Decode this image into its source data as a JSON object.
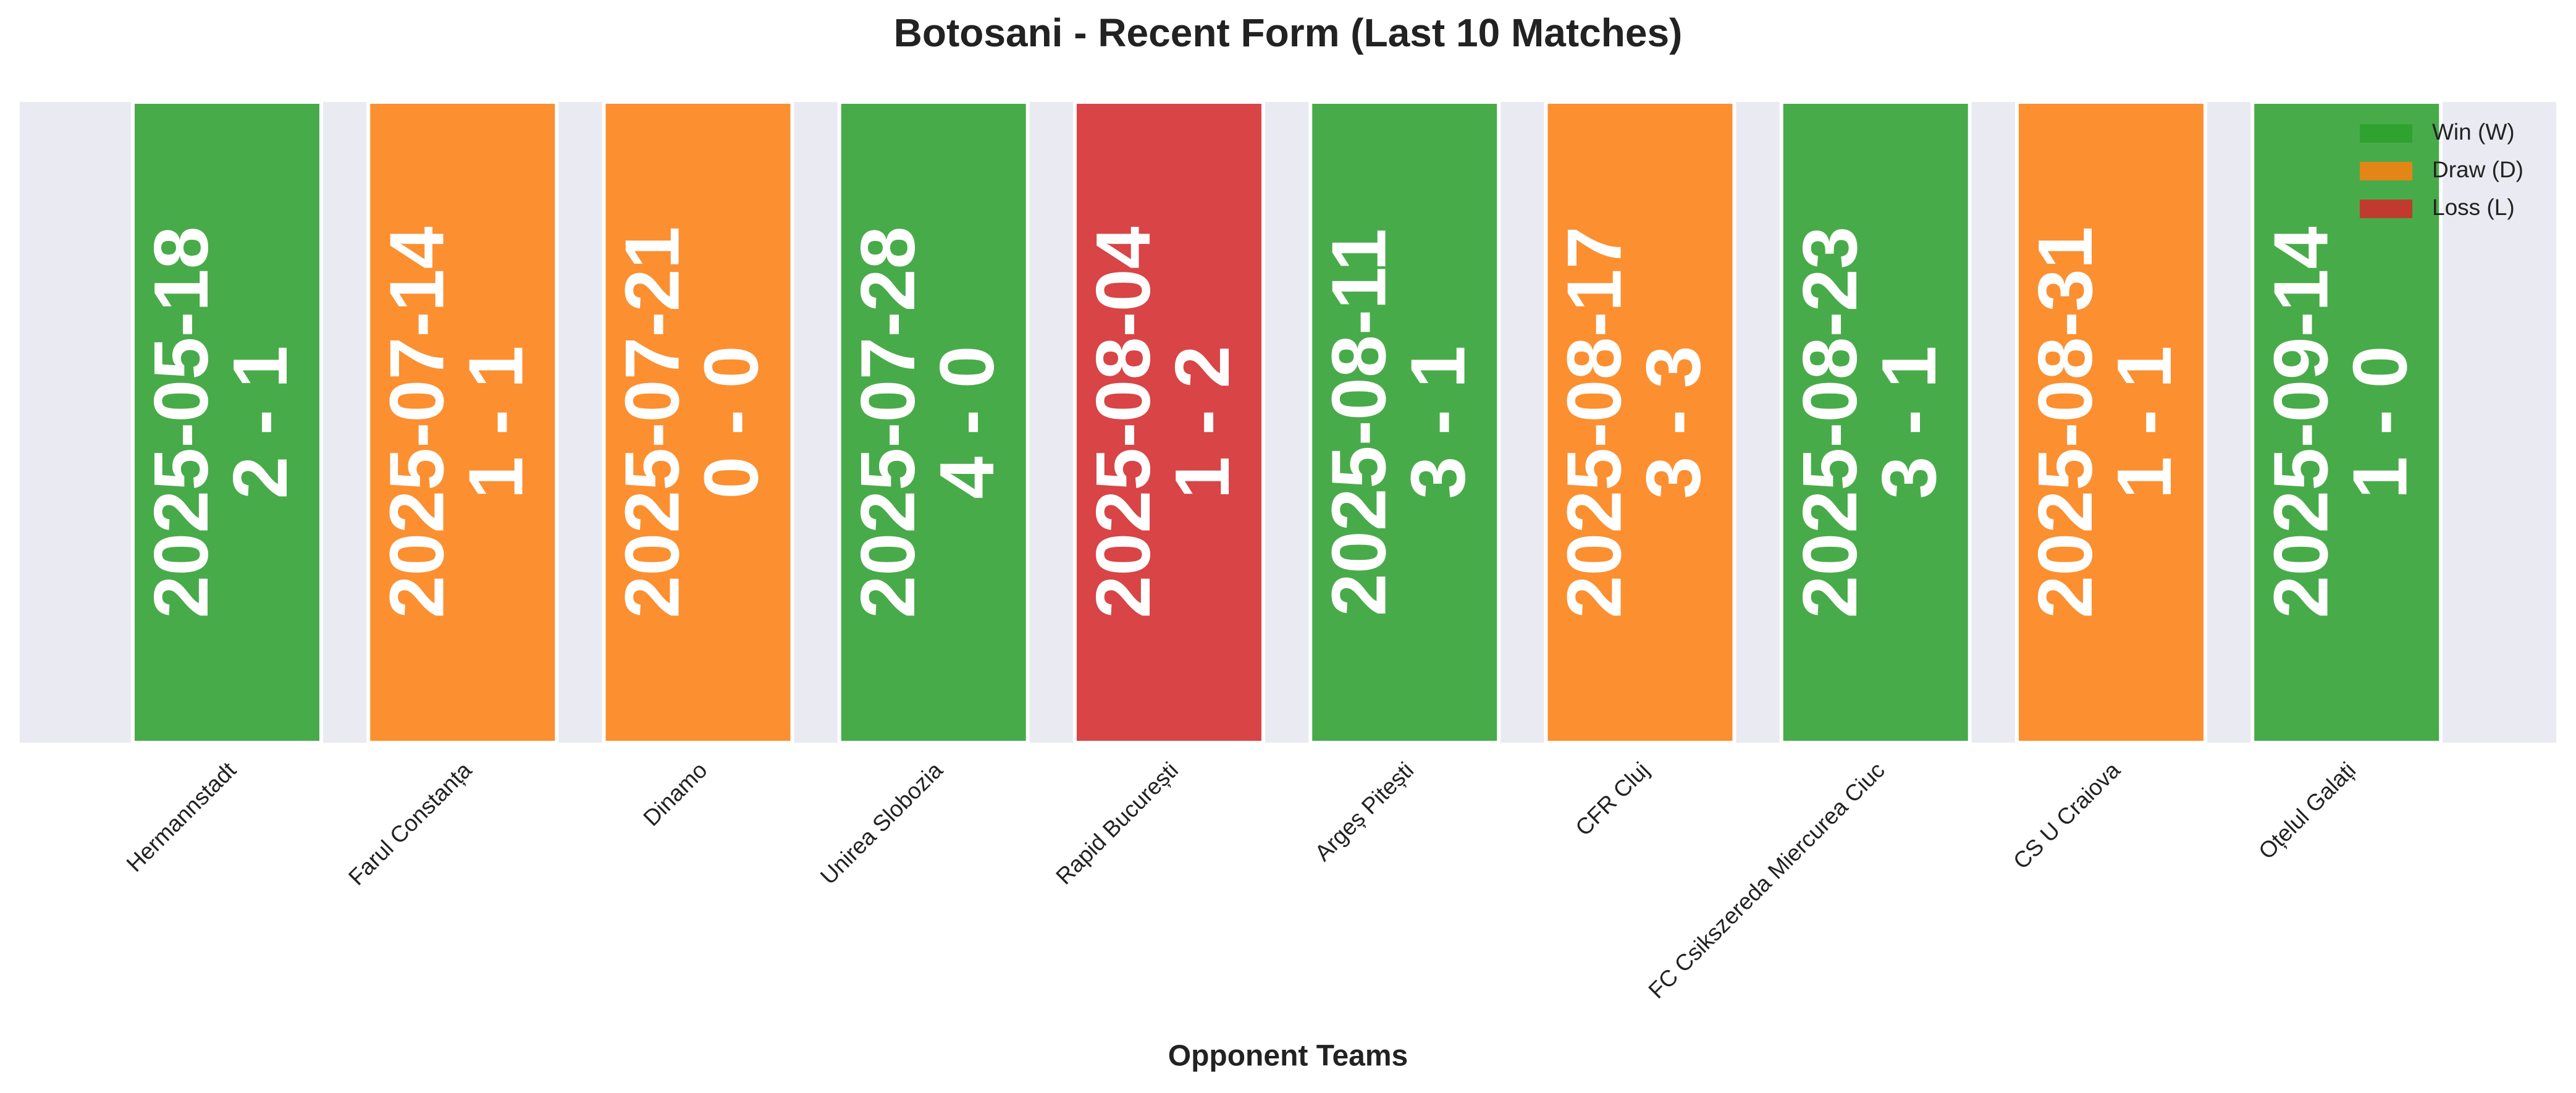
{
  "chart_data": {
    "type": "bar",
    "title": "Botosani - Recent Form (Last 10 Matches)",
    "x_label": "Opponent Teams",
    "categories": [
      "Hermannstadt",
      "Farul Constanța",
      "Dinamo",
      "Unirea Slobozia",
      "Rapid București",
      "Argeș Pitești",
      "CFR Cluj",
      "FC Csikszereda Miercurea Ciuc",
      "CS U Craiova",
      "Oțelul Galați"
    ],
    "dates": [
      "2025-05-18",
      "2025-07-14",
      "2025-07-21",
      "2025-07-28",
      "2025-08-04",
      "2025-08-11",
      "2025-08-17",
      "2025-08-23",
      "2025-08-31",
      "2025-09-14"
    ],
    "scores": [
      "2 - 1",
      "1 - 1",
      "0 - 0",
      "4 - 0",
      "1 - 2",
      "3 - 1",
      "3 - 3",
      "3 - 1",
      "1 - 1",
      "1 - 0"
    ],
    "series": [
      {
        "name": "Win (W)",
        "color": "#2ca02c",
        "values": [
          1,
          null,
          null,
          1,
          null,
          1,
          null,
          1,
          null,
          1
        ]
      },
      {
        "name": "Draw (D)",
        "color": "#ff7f0e",
        "values": [
          null,
          1,
          1,
          null,
          null,
          null,
          1,
          null,
          1,
          null
        ]
      },
      {
        "name": "Loss (L)",
        "color": "#d62728",
        "values": [
          null,
          null,
          null,
          null,
          1,
          null,
          null,
          null,
          null,
          null
        ]
      }
    ],
    "ylim": [
      0,
      1
    ],
    "legend": "upper right"
  }
}
